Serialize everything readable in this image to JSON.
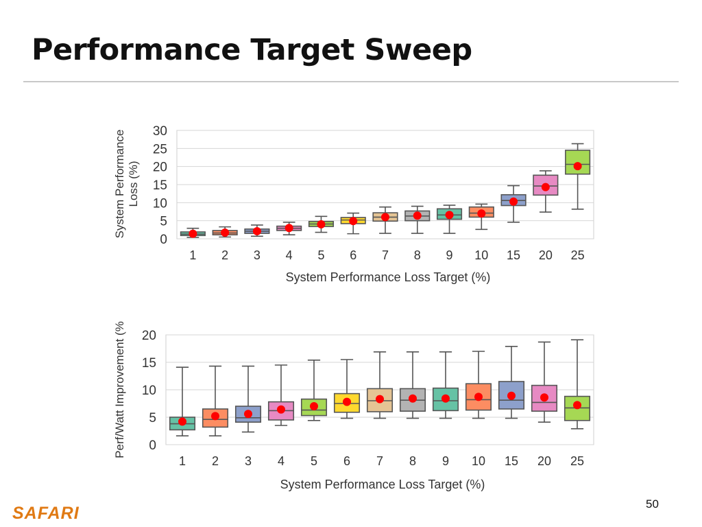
{
  "slide": {
    "title": "Performance Target Sweep",
    "brand": "SAFARI",
    "page_number": "50"
  },
  "chart_data": [
    {
      "type": "box",
      "ylabel": "System Performance Loss (%)",
      "xlabel": "System Performance Loss Target (%)",
      "ylim": [
        0,
        30
      ],
      "yticks": [
        0,
        5,
        10,
        15,
        20,
        25,
        30
      ],
      "grid": true,
      "categories": [
        "1",
        "2",
        "3",
        "4",
        "5",
        "6",
        "7",
        "8",
        "9",
        "10",
        "15",
        "20",
        "25"
      ],
      "colors": [
        "#66c2a5",
        "#fc8d62",
        "#8da0cb",
        "#e78ac3",
        "#a6d854",
        "#ffd92f",
        "#e5c494",
        "#b3b3b3",
        "#66c2a5",
        "#fc8d62",
        "#8da0cb",
        "#e78ac3",
        "#a6d854"
      ],
      "boxes": [
        {
          "whislo": 0.4,
          "q1": 0.9,
          "med": 1.3,
          "q3": 1.9,
          "whishi": 2.9,
          "mean": 1.4
        },
        {
          "whislo": 0.5,
          "q1": 1.1,
          "med": 1.6,
          "q3": 2.3,
          "whishi": 3.3,
          "mean": 1.7
        },
        {
          "whislo": 0.7,
          "q1": 1.5,
          "med": 2.1,
          "q3": 2.7,
          "whishi": 3.8,
          "mean": 2.1
        },
        {
          "whislo": 1.1,
          "q1": 2.3,
          "med": 2.9,
          "q3": 3.5,
          "whishi": 4.6,
          "mean": 3.0
        },
        {
          "whislo": 1.8,
          "q1": 3.4,
          "med": 4.1,
          "q3": 4.8,
          "whishi": 6.2,
          "mean": 4.0
        },
        {
          "whislo": 1.4,
          "q1": 4.2,
          "med": 5.2,
          "q3": 5.9,
          "whishi": 7.1,
          "mean": 4.9
        },
        {
          "whislo": 1.5,
          "q1": 4.9,
          "med": 6.0,
          "q3": 7.2,
          "whishi": 8.8,
          "mean": 6.0
        },
        {
          "whislo": 1.5,
          "q1": 5.0,
          "med": 6.3,
          "q3": 7.7,
          "whishi": 9.0,
          "mean": 6.4
        },
        {
          "whislo": 1.5,
          "q1": 5.4,
          "med": 6.6,
          "q3": 8.3,
          "whishi": 9.3,
          "mean": 6.6
        },
        {
          "whislo": 2.6,
          "q1": 6.0,
          "med": 7.1,
          "q3": 8.8,
          "whishi": 9.6,
          "mean": 7.0
        },
        {
          "whislo": 4.6,
          "q1": 9.2,
          "med": 10.6,
          "q3": 12.2,
          "whishi": 14.7,
          "mean": 10.3
        },
        {
          "whislo": 7.4,
          "q1": 12.1,
          "med": 14.6,
          "q3": 17.6,
          "whishi": 18.8,
          "mean": 14.3
        },
        {
          "whislo": 8.2,
          "q1": 17.9,
          "med": 20.6,
          "q3": 24.5,
          "whishi": 26.3,
          "mean": 20.1
        }
      ]
    },
    {
      "type": "box",
      "ylabel": "Perf/Watt Improvement (%",
      "xlabel": "System Performance Loss Target (%)",
      "ylim": [
        0,
        20
      ],
      "yticks": [
        0,
        5,
        10,
        15,
        20
      ],
      "grid": true,
      "categories": [
        "1",
        "2",
        "3",
        "4",
        "5",
        "6",
        "7",
        "8",
        "9",
        "10",
        "15",
        "20",
        "25"
      ],
      "colors": [
        "#66c2a5",
        "#fc8d62",
        "#8da0cb",
        "#e78ac3",
        "#a6d854",
        "#ffd92f",
        "#e5c494",
        "#b3b3b3",
        "#66c2a5",
        "#fc8d62",
        "#8da0cb",
        "#e78ac3",
        "#a6d854"
      ],
      "boxes": [
        {
          "whislo": 1.6,
          "q1": 2.7,
          "med": 3.8,
          "q3": 5.0,
          "whishi": 14.1,
          "mean": 4.2
        },
        {
          "whislo": 1.6,
          "q1": 3.2,
          "med": 4.6,
          "q3": 6.5,
          "whishi": 14.3,
          "mean": 5.2
        },
        {
          "whislo": 2.3,
          "q1": 4.1,
          "med": 4.9,
          "q3": 7.0,
          "whishi": 14.3,
          "mean": 5.6
        },
        {
          "whislo": 3.5,
          "q1": 4.5,
          "med": 6.2,
          "q3": 7.8,
          "whishi": 14.5,
          "mean": 6.4
        },
        {
          "whislo": 4.4,
          "q1": 5.3,
          "med": 6.3,
          "q3": 8.3,
          "whishi": 15.4,
          "mean": 7.0
        },
        {
          "whislo": 4.8,
          "q1": 5.9,
          "med": 7.5,
          "q3": 9.3,
          "whishi": 15.5,
          "mean": 7.8
        },
        {
          "whislo": 4.8,
          "q1": 6.0,
          "med": 8.0,
          "q3": 10.2,
          "whishi": 16.9,
          "mean": 8.3
        },
        {
          "whislo": 4.8,
          "q1": 6.1,
          "med": 8.1,
          "q3": 10.2,
          "whishi": 16.9,
          "mean": 8.4
        },
        {
          "whislo": 4.8,
          "q1": 6.2,
          "med": 8.0,
          "q3": 10.3,
          "whishi": 16.9,
          "mean": 8.4
        },
        {
          "whislo": 4.8,
          "q1": 6.3,
          "med": 8.2,
          "q3": 11.1,
          "whishi": 17.0,
          "mean": 8.7
        },
        {
          "whislo": 4.8,
          "q1": 6.5,
          "med": 8.1,
          "q3": 11.5,
          "whishi": 17.9,
          "mean": 8.9
        },
        {
          "whislo": 4.1,
          "q1": 6.1,
          "med": 7.7,
          "q3": 10.8,
          "whishi": 18.7,
          "mean": 8.6
        },
        {
          "whislo": 2.9,
          "q1": 4.4,
          "med": 6.7,
          "q3": 8.8,
          "whishi": 19.1,
          "mean": 7.2
        }
      ]
    }
  ]
}
